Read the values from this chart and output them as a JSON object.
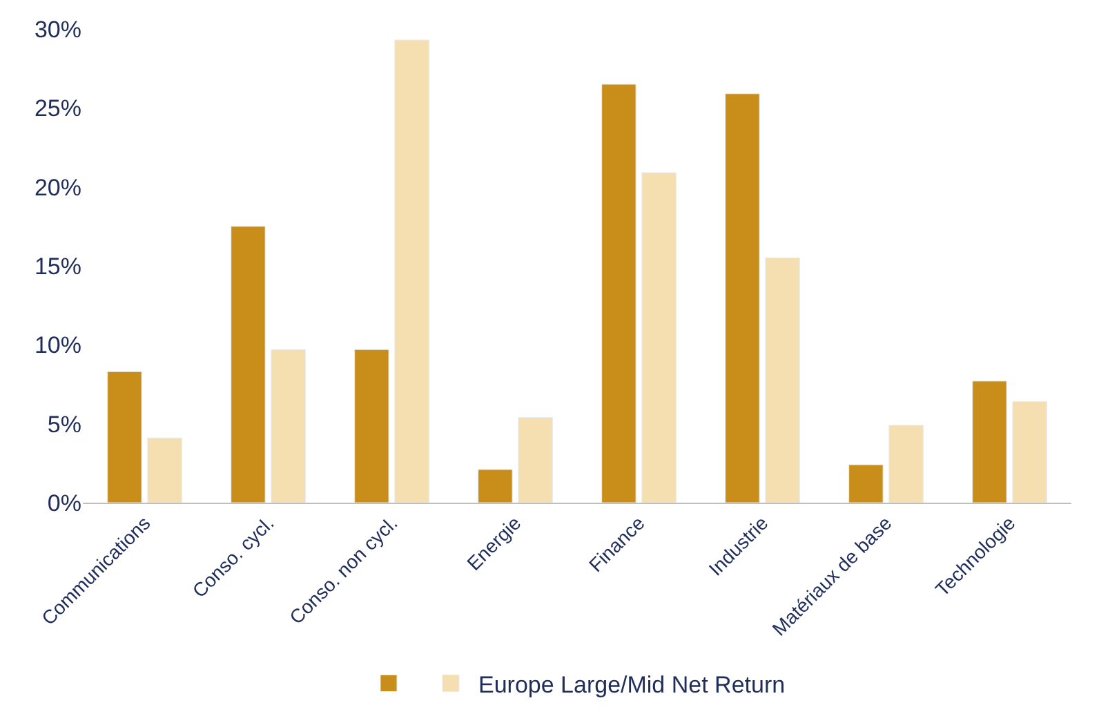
{
  "chart_data": {
    "type": "bar",
    "categories": [
      "Communications",
      "Conso. cycl.",
      "Conso. non cycl.",
      "Energie",
      "Finance",
      "Industrie",
      "Matériaux de base",
      "Technologie"
    ],
    "series": [
      {
        "color": "#c98d1a",
        "values": [
          8.3,
          17.5,
          9.7,
          2.1,
          26.5,
          25.9,
          2.4,
          7.7
        ]
      },
      {
        "name": "Europe Large/Mid Net Return",
        "color": "#f5deb0",
        "values": [
          4.1,
          9.7,
          29.3,
          5.4,
          20.9,
          15.5,
          4.9,
          6.4
        ]
      }
    ],
    "ylim": [
      0,
      30
    ],
    "yticks": [
      {
        "value": 0,
        "label": "0%"
      },
      {
        "value": 5,
        "label": "5%"
      },
      {
        "value": 10,
        "label": "10%"
      },
      {
        "value": 15,
        "label": "15%"
      },
      {
        "value": 20,
        "label": "20%"
      },
      {
        "value": 25,
        "label": "25%"
      },
      {
        "value": 30,
        "label": "30%"
      }
    ],
    "legend": "bottom"
  }
}
